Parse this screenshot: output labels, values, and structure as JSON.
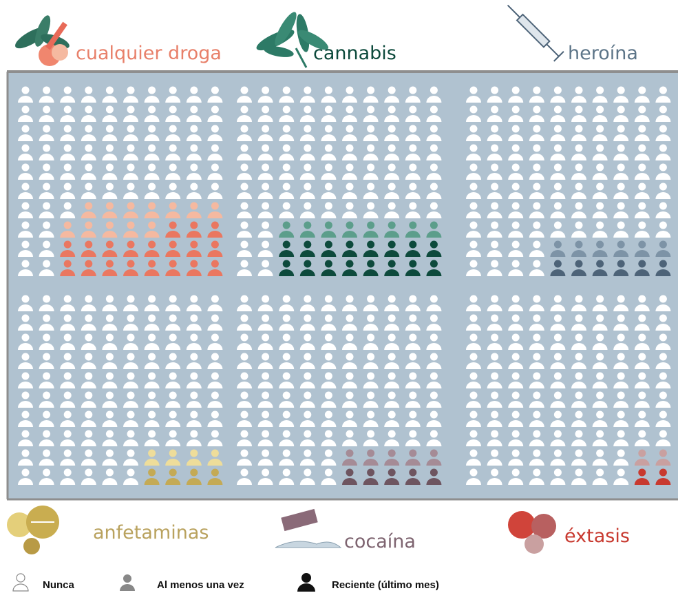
{
  "panels": [
    {
      "name": "cualquier droga",
      "label_color": "#e8806a",
      "color_ever": "#f5b9a0",
      "color_recent": "#ea7760",
      "ever": 31,
      "recent": 19
    },
    {
      "name": "cannabis",
      "label_color": "#0d4a3c",
      "color_ever": "#5c9e8b",
      "color_recent": "#0d4a3c",
      "ever": 24,
      "recent": 16
    },
    {
      "name": "heroína",
      "label_color": "#5d7588",
      "color_ever": "#7d93a6",
      "color_recent": "#4d6378",
      "ever": 12,
      "recent": 6
    },
    {
      "name": "anfetaminas",
      "label_color": "#b9a25e",
      "color_ever": "#eedd9a",
      "color_recent": "#c4aa55",
      "ever": 8,
      "recent": 4
    },
    {
      "name": "cocaína",
      "label_color": "#7e6470",
      "color_ever": "#a58b96",
      "color_recent": "#6e5560",
      "ever": 10,
      "recent": 5
    },
    {
      "name": "éxtasis",
      "label_color": "#c8392f",
      "color_ever": "#c9a0a0",
      "color_recent": "#c8392f",
      "ever": 4,
      "recent": 2
    }
  ],
  "legend": {
    "never": "Nunca",
    "ever": "Al menos una vez",
    "recent": "Reciente (último mes)"
  }
}
